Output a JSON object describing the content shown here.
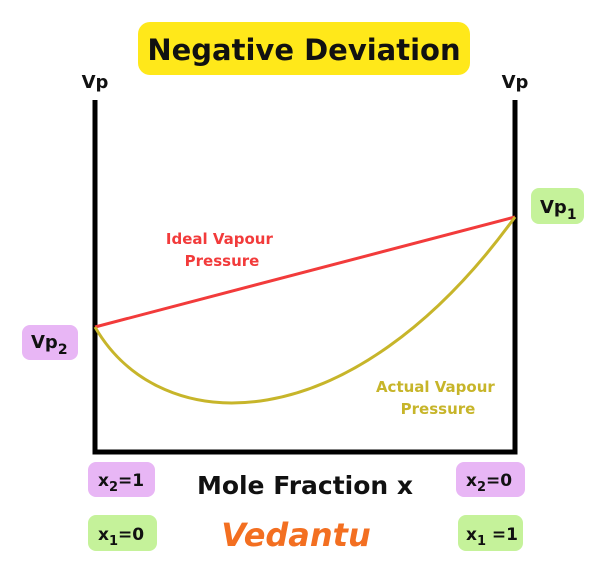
{
  "title": "Negative Deviation",
  "axis_left_label": "Vp",
  "axis_right_label": "Vp",
  "vp1": {
    "base": "Vp",
    "sub": "1"
  },
  "vp2": {
    "base": "Vp",
    "sub": "2"
  },
  "ideal_label": [
    "Ideal Vapour",
    "Pressure"
  ],
  "actual_label": [
    "Actual Vapour",
    "Pressure"
  ],
  "x_axis_label": "Mole Fraction x",
  "left_x2": {
    "base": "x",
    "sub": "2",
    "rest": "=1"
  },
  "right_x2": {
    "base": "x",
    "sub": "2",
    "rest": "=0"
  },
  "left_x1": {
    "base": "x",
    "sub": "1",
    "rest": "=0"
  },
  "right_x1": {
    "base": "x",
    "sub": "1",
    "rest": " =1"
  },
  "logo": "Vedantu"
}
